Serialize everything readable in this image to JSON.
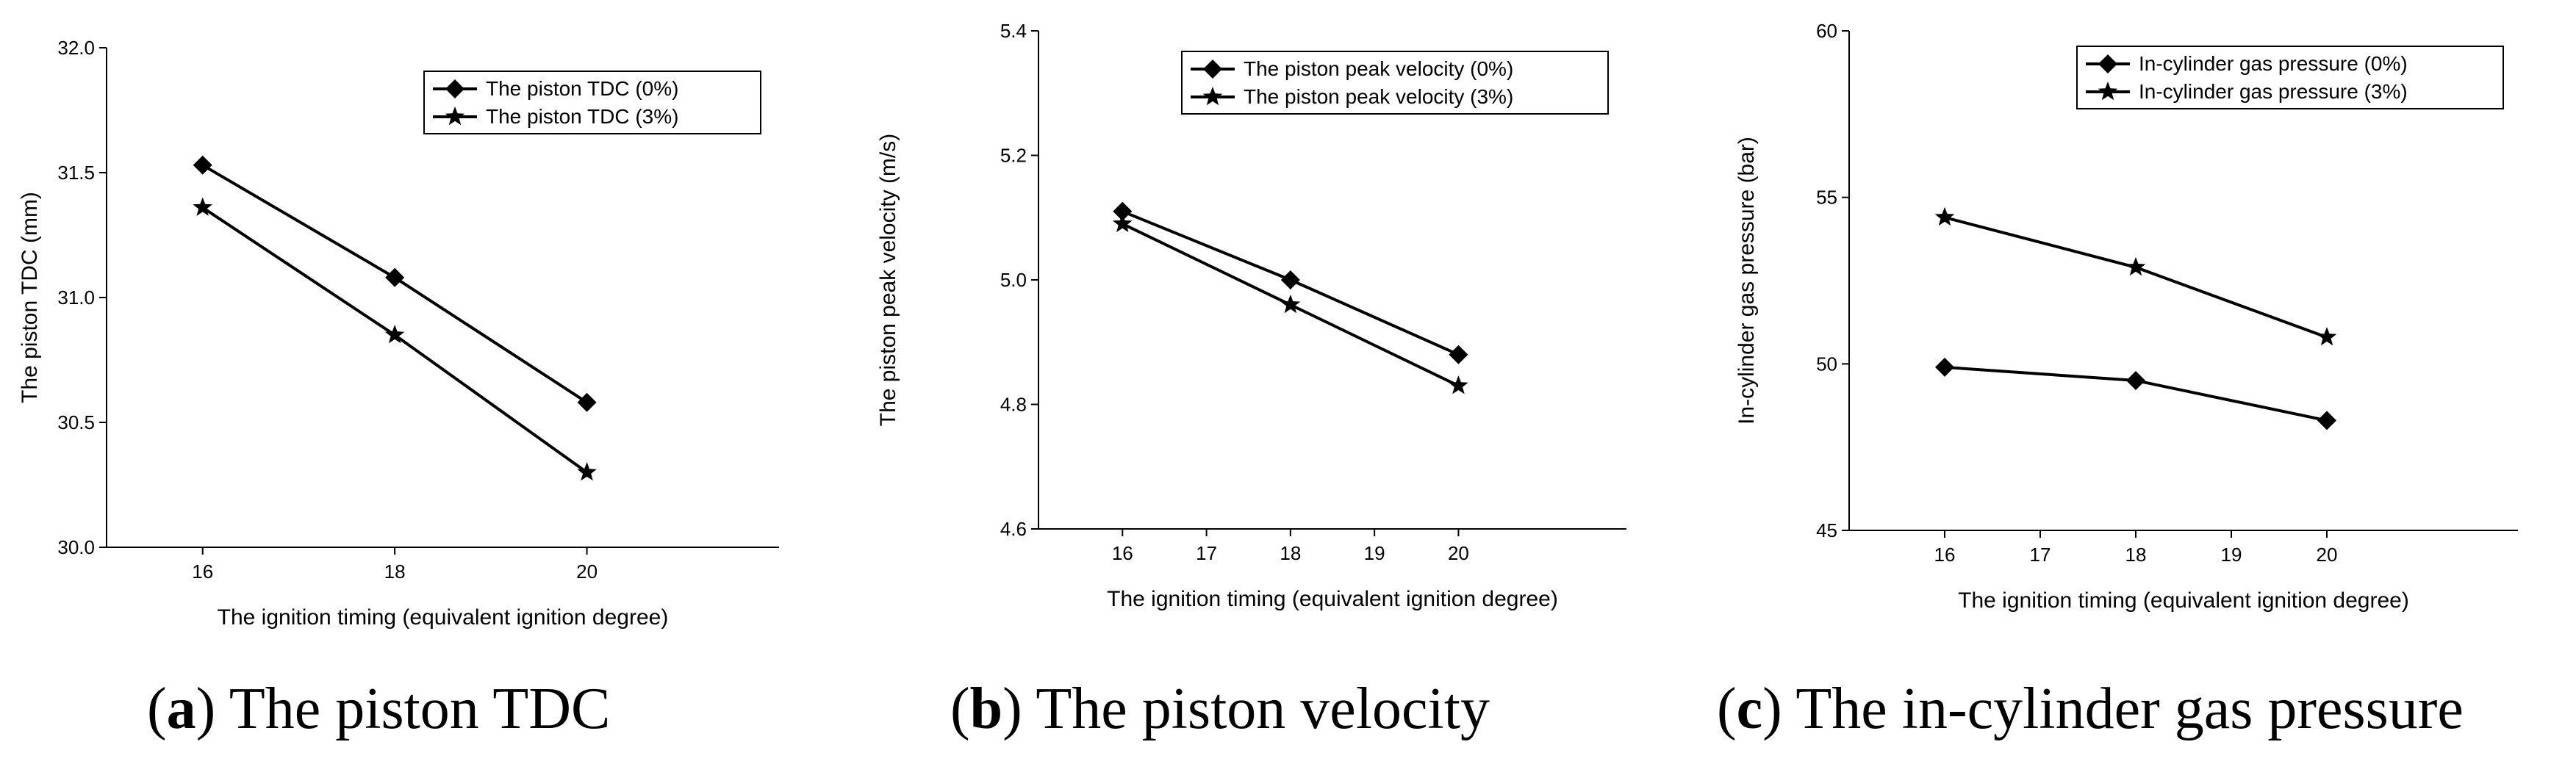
{
  "colors": {
    "line": "#000000",
    "background": "#ffffff"
  },
  "panels": [
    {
      "caption": {
        "letter": "a",
        "text": "The piston TDC"
      },
      "chart_data": {
        "type": "line",
        "xlabel": "The ignition timing (equivalent ignition degree)",
        "ylabel": "The piston TDC (mm)",
        "xlim": [
          15,
          22
        ],
        "ylim": [
          30.0,
          32.0
        ],
        "xticks": [
          16,
          18,
          20
        ],
        "xtick_labels": [
          "16",
          "18",
          "20"
        ],
        "yticks": [
          30.0,
          30.5,
          31.0,
          31.5,
          32.0
        ],
        "ytick_labels": [
          "30.0",
          "30.5",
          "31.0",
          "31.5",
          "32.0"
        ],
        "legend_position": "top-right",
        "series": [
          {
            "name": "The piston TDC (0%)",
            "marker": "diamond",
            "x": [
              16,
              18,
              20
            ],
            "values": [
              31.53,
              31.08,
              30.58
            ]
          },
          {
            "name": "The piston TDC (3%)",
            "marker": "star",
            "x": [
              16,
              18,
              20
            ],
            "values": [
              31.36,
              30.85,
              30.3
            ]
          }
        ]
      }
    },
    {
      "caption": {
        "letter": "b",
        "text": "The piston velocity"
      },
      "chart_data": {
        "type": "line",
        "xlabel": "The ignition timing (equivalent ignition degree)",
        "ylabel": "The piston peak velocity (m/s)",
        "xlim": [
          15,
          22
        ],
        "ylim": [
          4.6,
          5.4
        ],
        "xticks": [
          16,
          17,
          18,
          19,
          20
        ],
        "xtick_labels": [
          "16",
          "17",
          "18",
          "19",
          "20"
        ],
        "yticks": [
          4.6,
          4.8,
          5.0,
          5.2,
          5.4
        ],
        "ytick_labels": [
          "4.6",
          "4.8",
          "5.0",
          "5.2",
          "5.4"
        ],
        "legend_position": "top-right",
        "series": [
          {
            "name": "The piston peak velocity (0%)",
            "marker": "diamond",
            "x": [
              16,
              18,
              20
            ],
            "values": [
              5.11,
              5.0,
              4.88
            ]
          },
          {
            "name": "The piston peak velocity (3%)",
            "marker": "star",
            "x": [
              16,
              18,
              20
            ],
            "values": [
              5.09,
              4.96,
              4.83
            ]
          }
        ]
      }
    },
    {
      "caption": {
        "letter": "c",
        "text": "The in-cylinder gas pressure"
      },
      "chart_data": {
        "type": "line",
        "xlabel": "The ignition timing (equivalent ignition degree)",
        "ylabel": "In-cylinder gas pressure (bar)",
        "xlim": [
          15,
          22
        ],
        "ylim": [
          45,
          60
        ],
        "xticks": [
          16,
          17,
          18,
          19,
          20
        ],
        "xtick_labels": [
          "16",
          "17",
          "18",
          "19",
          "20"
        ],
        "yticks": [
          45,
          50,
          55,
          60
        ],
        "ytick_labels": [
          "45",
          "50",
          "55",
          "60"
        ],
        "legend_position": "top-right",
        "series": [
          {
            "name": "In-cylinder gas pressure (0%)",
            "marker": "diamond",
            "x": [
              16,
              18,
              20
            ],
            "values": [
              49.9,
              49.5,
              48.3
            ]
          },
          {
            "name": "In-cylinder gas pressure (3%)",
            "marker": "star",
            "x": [
              16,
              18,
              20
            ],
            "values": [
              54.4,
              52.9,
              50.8
            ]
          }
        ]
      }
    }
  ]
}
